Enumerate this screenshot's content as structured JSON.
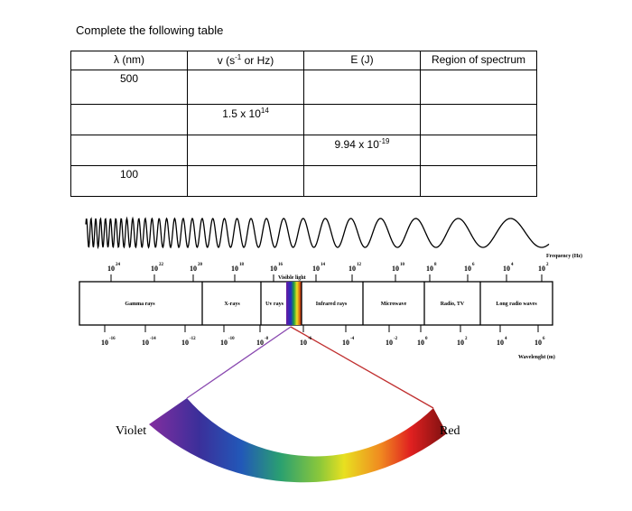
{
  "instruction": "Complete the following table",
  "table": {
    "header": [
      [
        {
          "t": "λ (nm)"
        }
      ],
      [
        {
          "t": "v (s"
        },
        {
          "sup": "-1"
        },
        {
          "t": " or Hz)"
        }
      ],
      [
        {
          "t": "E (J)"
        }
      ],
      [
        {
          "t": "Region of spectrum"
        }
      ]
    ],
    "rows": [
      [
        [
          {
            "t": "500"
          }
        ],
        [],
        [],
        []
      ],
      [
        [],
        [
          {
            "t": "1.5 x 10"
          },
          {
            "sup": "14"
          }
        ],
        [],
        []
      ],
      [
        [],
        [],
        [
          {
            "t": "9.94 x 10"
          },
          {
            "sup": "-19"
          }
        ],
        []
      ],
      [
        [
          {
            "t": "100"
          }
        ],
        [],
        [],
        []
      ]
    ]
  },
  "diagram": {
    "frequency_label": "Frequency (Hz)",
    "frequency_ticks": [
      {
        "base": "10",
        "exp": "24"
      },
      {
        "base": "10",
        "exp": "22"
      },
      {
        "base": "10",
        "exp": "20"
      },
      {
        "base": "10",
        "exp": "18"
      },
      {
        "base": "10",
        "exp": "16"
      },
      {
        "base": "10",
        "exp": "14"
      },
      {
        "base": "10",
        "exp": "12"
      },
      {
        "base": "10",
        "exp": "10"
      },
      {
        "base": "10",
        "exp": "8"
      },
      {
        "base": "10",
        "exp": "6"
      },
      {
        "base": "10",
        "exp": "4"
      },
      {
        "base": "10",
        "exp": "2"
      }
    ],
    "visible_label": "Visible light",
    "regions": [
      "Gamma rays",
      "X-rays",
      "Uv rays",
      "Infrared rays",
      "Microwave",
      "Radio, TV",
      "Long radio waves"
    ],
    "wavelength_ticks": [
      {
        "base": "10",
        "exp": "-16"
      },
      {
        "base": "10",
        "exp": "-14"
      },
      {
        "base": "10",
        "exp": "-12"
      },
      {
        "base": "10",
        "exp": "-10"
      },
      {
        "base": "10",
        "exp": "-8"
      },
      {
        "base": "10",
        "exp": "-6"
      },
      {
        "base": "10",
        "exp": "-4"
      },
      {
        "base": "10",
        "exp": "-2"
      },
      {
        "base": "10",
        "exp": "0"
      },
      {
        "base": "10",
        "exp": "2"
      },
      {
        "base": "10",
        "exp": "4"
      },
      {
        "base": "10",
        "exp": "6"
      }
    ],
    "wavelength_label": "Wavelenght (m)",
    "violet_label": "Violet",
    "red_label": "Red"
  }
}
